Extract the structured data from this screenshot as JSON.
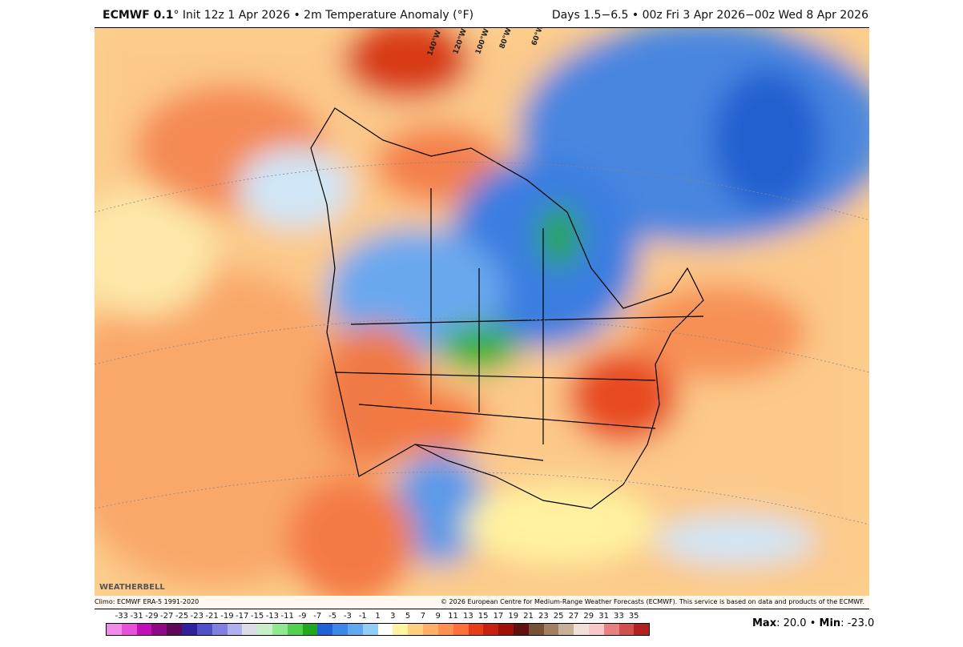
{
  "header": {
    "model": "ECMWF 0.1",
    "deg": "°",
    "left_rest": " Init 12z 1 Apr 2026 • 2m Temperature Anomaly (°F)",
    "right": "Days 1.5−6.5 • 00z Fri 3 Apr 2026−00z Wed 8 Apr 2026"
  },
  "map": {
    "longitude_labels": [
      "140°W",
      "120°W",
      "100°W",
      "80°W",
      "60°W"
    ],
    "logo": "WEATHERBELL"
  },
  "credits": {
    "climo": "Climo: ECMWF ERA-5 1991-2020",
    "copyright": "© 2026 European Centre for Medium-Range Weather Forecasts (ECMWF). This service is based on data and products of the ECMWF."
  },
  "colorbar": {
    "labels": [
      "-33",
      "-31",
      "-29",
      "-27",
      "-25",
      "-23",
      "-21",
      "-19",
      "-17",
      "-15",
      "-13",
      "-11",
      "-9",
      "-7",
      "-5",
      "-3",
      "-1",
      "1",
      "3",
      "5",
      "7",
      "9",
      "11",
      "13",
      "15",
      "17",
      "19",
      "21",
      "23",
      "25",
      "27",
      "29",
      "31",
      "33",
      "35"
    ],
    "colors": [
      "#f08ce8",
      "#e850dc",
      "#c010b8",
      "#900888",
      "#600858",
      "#3020a0",
      "#5050c8",
      "#8080e0",
      "#b0b0f0",
      "#dcdce8",
      "#c8f0c8",
      "#90e890",
      "#50d050",
      "#20a820",
      "#2060d8",
      "#3c88e8",
      "#60a8f0",
      "#90cef8",
      "#ffffff",
      "#fff4a0",
      "#ffd080",
      "#ffb068",
      "#ff9050",
      "#ff7038",
      "#e83c18",
      "#c82010",
      "#a01008",
      "#601010",
      "#785038",
      "#a08060",
      "#c8b098",
      "#f0e0d8",
      "#f8c8c8",
      "#e88080",
      "#d05050",
      "#b02020"
    ]
  },
  "stats": {
    "max_label": "Max",
    "max": "20.0",
    "min_label": "Min",
    "min": "-23.0"
  }
}
